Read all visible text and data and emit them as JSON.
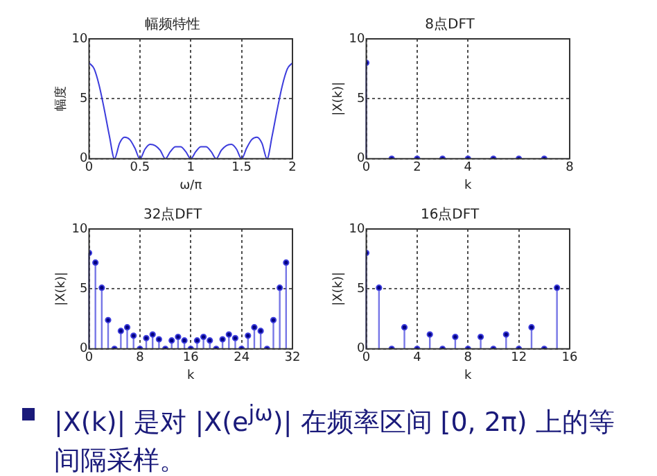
{
  "chart_data": [
    {
      "type": "line",
      "title": "幅频特性",
      "xlabel": "ω/π",
      "ylabel": "幅度",
      "xlim": [
        0,
        2
      ],
      "xticks": [
        0,
        0.5,
        1,
        1.5,
        2
      ],
      "ylim": [
        0,
        10
      ],
      "yticks": [
        0,
        5,
        10
      ],
      "grid": true,
      "marker": "none",
      "line_style": "solid",
      "series": [
        {
          "color": "#3c3cdc",
          "x": [
            0,
            0.05,
            0.1,
            0.15,
            0.2,
            0.25,
            0.3,
            0.35,
            0.4,
            0.45,
            0.5,
            0.55,
            0.6,
            0.65,
            0.7,
            0.75,
            0.8,
            0.85,
            0.9,
            0.95,
            1,
            1.05,
            1.1,
            1.15,
            1.2,
            1.25,
            1.3,
            1.35,
            1.4,
            1.45,
            1.5,
            1.55,
            1.6,
            1.65,
            1.7,
            1.75,
            1.8,
            1.85,
            1.9,
            1.95,
            2
          ],
          "values": [
            8,
            7.5,
            6.1,
            4.1,
            1.9,
            0,
            1.3,
            1.8,
            1.6,
            0.9,
            0,
            0.8,
            1.2,
            1.1,
            0.7,
            0,
            0.6,
            1.0,
            1.0,
            0.6,
            0,
            0.6,
            1.0,
            1.0,
            0.6,
            0,
            0.7,
            1.1,
            1.2,
            0.8,
            0,
            0.9,
            1.6,
            1.8,
            1.3,
            0,
            1.9,
            4.1,
            6.1,
            7.5,
            8
          ]
        }
      ]
    },
    {
      "type": "lollipop",
      "title": "8点DFT",
      "xlabel": "k",
      "ylabel": "|X(k)|",
      "xlim": [
        0,
        8
      ],
      "xticks": [
        0,
        2,
        4,
        8
      ],
      "ylim": [
        0,
        10
      ],
      "yticks": [
        0,
        5,
        10
      ],
      "grid": true,
      "marker": "circle",
      "series": [
        {
          "color": "#3c3cdc",
          "x": [
            0,
            1,
            2,
            3,
            4,
            5,
            6,
            7
          ],
          "values": [
            8,
            0,
            0,
            0,
            0,
            0,
            0,
            0
          ]
        }
      ]
    },
    {
      "type": "lollipop",
      "title": "32点DFT",
      "xlabel": "k",
      "ylabel": "|X(k)|",
      "xlim": [
        0,
        32
      ],
      "xticks": [
        0,
        8,
        16,
        24,
        32
      ],
      "ylim": [
        0,
        10
      ],
      "yticks": [
        0,
        5,
        10
      ],
      "grid": true,
      "marker": "circle",
      "series": [
        {
          "color": "#3c3cdc",
          "x": [
            0,
            1,
            2,
            3,
            4,
            5,
            6,
            7,
            8,
            9,
            10,
            11,
            12,
            13,
            14,
            15,
            16,
            17,
            18,
            19,
            20,
            21,
            22,
            23,
            24,
            25,
            26,
            27,
            28,
            29,
            30,
            31
          ],
          "values": [
            8,
            7.2,
            5.1,
            2.4,
            0,
            1.5,
            1.8,
            1.1,
            0,
            0.9,
            1.2,
            0.8,
            0,
            0.7,
            1.0,
            0.7,
            0,
            0.7,
            1.0,
            0.7,
            0,
            0.8,
            1.2,
            0.9,
            0,
            1.1,
            1.8,
            1.5,
            0,
            2.4,
            5.1,
            7.2
          ]
        }
      ]
    },
    {
      "type": "lollipop",
      "title": "16点DFT",
      "xlabel": "k",
      "ylabel": "|X(k)|",
      "xlim": [
        0,
        16
      ],
      "xticks": [
        0,
        4,
        8,
        12,
        16
      ],
      "ylim": [
        0,
        10
      ],
      "yticks": [
        0,
        5,
        10
      ],
      "grid": true,
      "marker": "circle",
      "annotations": [
        "|X(k)| 是对 |X(e$^{jω}$)| 在频率区间 [0, 2π) 上的等间隔采样。"
      ],
      "series": [
        {
          "color": "#3c3cdc",
          "x": [
            0,
            1,
            2,
            3,
            4,
            5,
            6,
            7,
            8,
            9,
            10,
            11,
            12,
            13,
            14,
            15
          ],
          "values": [
            8,
            5.1,
            0,
            1.8,
            0,
            1.2,
            0,
            1.0,
            0,
            1.0,
            0,
            1.2,
            0,
            1.8,
            0,
            5.1
          ]
        }
      ]
    }
  ]
}
